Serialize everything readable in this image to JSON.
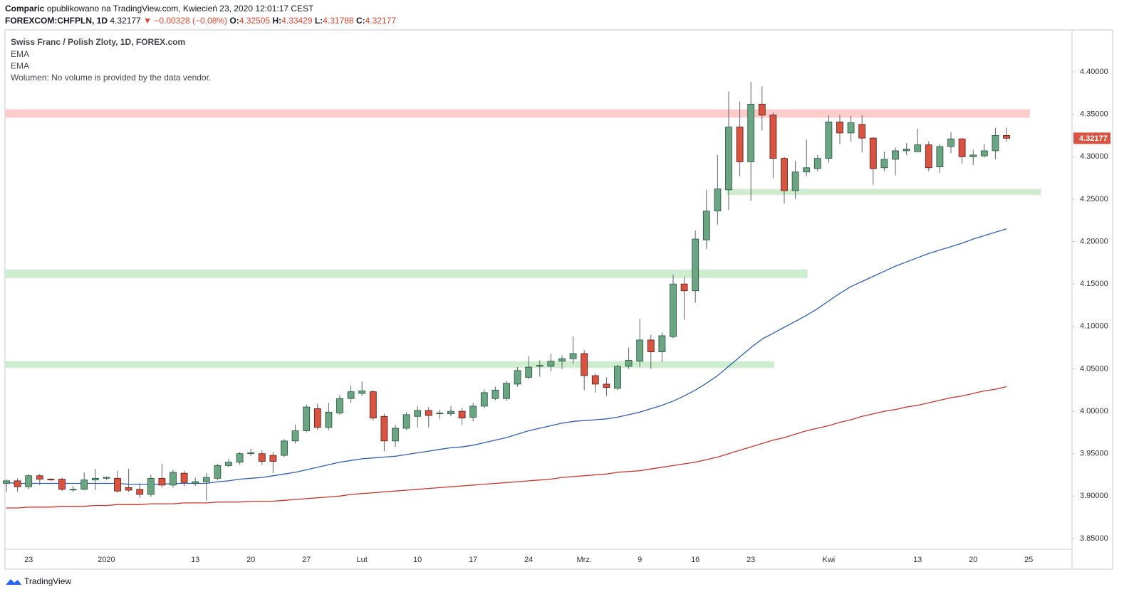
{
  "header": {
    "author": "Comparic",
    "published": "opublikowano na TradingView.com, Kwiecień 23, 2020 12:01:17 CEST",
    "symbol": "FOREXCOM:CHFPLN, 1D",
    "arrow": "▼",
    "change": "−0.00328 (−0.08%)",
    "o": "O:",
    "h": "H:",
    "l": "L:",
    "c": "C:"
  },
  "chart_data": {
    "type": "candlestick",
    "title": "Swiss Franc / Polish Zloty, 1D, FOREX.com",
    "volume_note": "Wolumen: No volume is provided by the data vendor.",
    "categories": [
      null,
      null,
      "23",
      null,
      null,
      null,
      null,
      null,
      null,
      "2020",
      null,
      null,
      null,
      null,
      null,
      null,
      null,
      "13",
      null,
      null,
      null,
      null,
      "20",
      null,
      null,
      null,
      null,
      "27",
      null,
      null,
      null,
      null,
      "Lut",
      null,
      null,
      null,
      null,
      "10",
      null,
      null,
      null,
      null,
      "17",
      null,
      null,
      null,
      null,
      "24",
      null,
      null,
      null,
      null,
      "Mrz.",
      null,
      null,
      null,
      null,
      "9",
      null,
      null,
      null,
      null,
      "16",
      null,
      null,
      null,
      null,
      "23",
      null,
      null,
      null,
      null,
      null,
      null,
      "Kwi",
      null,
      null,
      null,
      null,
      null,
      null,
      null,
      "13",
      null,
      null,
      null,
      null,
      "20",
      null,
      null,
      null,
      null,
      "25"
    ],
    "open": [
      3.915,
      3.918,
      3.911,
      3.924,
      3.92,
      3.92,
      3.908,
      3.908,
      3.919,
      3.921,
      3.921,
      3.91,
      3.908,
      3.902,
      3.921,
      3.913,
      3.927,
      3.915,
      3.917,
      3.921,
      3.936,
      3.94,
      3.95,
      3.95,
      3.948,
      3.948,
      3.965,
      3.977,
      4.003,
      3.981,
      3.998,
      4.015,
      4.021,
      4.023,
      3.994,
      3.965,
      3.98,
      3.994,
      4.001,
      3.997,
      3.997,
      4.0,
      3.993,
      4.006,
      4.015,
      4.015,
      4.032,
      4.04,
      4.053,
      4.053,
      4.059,
      4.062,
      4.068,
      4.042,
      4.032,
      4.027,
      4.053,
      4.059,
      4.084,
      4.07,
      4.088,
      4.15,
      4.142,
      4.202,
      4.236,
      4.261,
      4.335,
      4.294,
      4.362,
      4.349,
      4.298,
      4.26,
      4.282,
      4.286,
      4.298,
      4.341,
      4.328,
      4.338,
      4.322,
      4.287,
      4.297,
      4.307,
      4.306,
      4.314,
      4.288,
      4.312,
      4.321,
      4.3,
      4.301,
      4.307,
      4.32505,
      null,
      null
    ],
    "high": [
      3.92,
      3.921,
      3.926,
      3.926,
      3.921,
      3.922,
      3.912,
      3.928,
      3.932,
      3.923,
      3.93,
      3.932,
      3.915,
      3.925,
      3.938,
      3.931,
      3.93,
      3.922,
      3.927,
      3.938,
      3.944,
      3.952,
      3.956,
      3.954,
      3.952,
      3.967,
      3.984,
      4.008,
      4.009,
      4.01,
      4.019,
      4.03,
      4.035,
      4.025,
      3.997,
      3.984,
      3.999,
      4.006,
      4.005,
      4.002,
      4.006,
      4.004,
      4.01,
      4.026,
      4.029,
      4.036,
      4.052,
      4.065,
      4.06,
      4.068,
      4.066,
      4.088,
      4.072,
      4.045,
      4.04,
      4.055,
      4.075,
      4.109,
      4.09,
      4.093,
      4.161,
      4.158,
      4.213,
      4.261,
      4.302,
      4.377,
      4.365,
      4.388,
      4.383,
      4.352,
      4.3,
      4.295,
      4.32,
      4.302,
      4.349,
      4.349,
      4.348,
      4.349,
      4.323,
      4.306,
      4.311,
      4.316,
      4.333,
      4.318,
      4.315,
      4.329,
      4.322,
      4.308,
      4.315,
      4.334,
      4.33429,
      null,
      null
    ],
    "low": [
      3.905,
      3.905,
      3.908,
      3.913,
      3.918,
      3.906,
      3.905,
      3.907,
      3.907,
      3.919,
      3.904,
      3.905,
      3.898,
      3.899,
      3.91,
      3.91,
      3.912,
      3.912,
      3.895,
      3.919,
      3.934,
      3.937,
      3.947,
      3.937,
      3.927,
      3.946,
      3.962,
      3.975,
      3.978,
      3.978,
      3.996,
      4.01,
      4.018,
      3.989,
      3.953,
      3.958,
      3.978,
      3.981,
      3.981,
      3.991,
      3.994,
      3.984,
      3.988,
      4.004,
      4.013,
      4.012,
      4.029,
      4.038,
      4.041,
      4.047,
      4.05,
      4.056,
      4.025,
      4.022,
      4.018,
      4.025,
      4.05,
      4.052,
      4.05,
      4.058,
      4.086,
      4.108,
      4.128,
      4.191,
      4.22,
      4.237,
      4.277,
      4.248,
      4.331,
      4.275,
      4.245,
      4.25,
      4.277,
      4.283,
      4.293,
      4.315,
      4.318,
      4.305,
      4.267,
      4.283,
      4.278,
      4.302,
      4.305,
      4.283,
      4.281,
      4.304,
      4.292,
      4.29,
      4.299,
      4.297,
      4.31788,
      null,
      null
    ],
    "close": [
      3.918,
      3.911,
      3.924,
      3.92,
      3.919,
      3.908,
      3.908,
      3.919,
      3.921,
      3.922,
      3.906,
      3.907,
      3.902,
      3.921,
      3.913,
      3.928,
      3.916,
      3.917,
      3.922,
      3.936,
      3.94,
      3.95,
      3.951,
      3.941,
      3.941,
      3.965,
      3.977,
      4.005,
      3.981,
      3.999,
      4.015,
      4.023,
      4.024,
      3.992,
      3.965,
      3.98,
      3.996,
      4.001,
      3.995,
      3.998,
      4.0,
      3.992,
      4.006,
      4.022,
      4.025,
      4.033,
      4.048,
      4.052,
      4.054,
      4.059,
      4.062,
      4.068,
      4.042,
      4.032,
      4.028,
      4.053,
      4.06,
      4.084,
      4.07,
      4.089,
      4.15,
      4.142,
      4.203,
      4.236,
      4.262,
      4.335,
      4.294,
      4.362,
      4.349,
      4.298,
      4.26,
      4.282,
      4.287,
      4.298,
      4.341,
      4.328,
      4.34,
      4.322,
      4.286,
      4.297,
      4.307,
      4.309,
      4.314,
      4.287,
      4.312,
      4.321,
      4.3,
      4.302,
      4.307,
      4.325,
      4.32177,
      null,
      null
    ],
    "up_color": "#6ba583",
    "down_color": "#d75442",
    "series": [
      {
        "name": "EMA",
        "color": "#2f5fae",
        "values": [
          3.916,
          3.915,
          3.915,
          3.915,
          3.915,
          3.915,
          3.915,
          3.915,
          3.915,
          3.915,
          3.915,
          3.914,
          3.914,
          3.914,
          3.914,
          3.915,
          3.915,
          3.915,
          3.915,
          3.917,
          3.918,
          3.92,
          3.921,
          3.922,
          3.924,
          3.926,
          3.928,
          3.931,
          3.934,
          3.937,
          3.94,
          3.942,
          3.944,
          3.945,
          3.946,
          3.947,
          3.949,
          3.951,
          3.953,
          3.955,
          3.957,
          3.958,
          3.96,
          3.963,
          3.966,
          3.969,
          3.973,
          3.977,
          3.98,
          3.983,
          3.986,
          3.988,
          3.989,
          3.99,
          3.991,
          3.993,
          3.996,
          3.999,
          4.003,
          4.007,
          4.012,
          4.018,
          4.025,
          4.033,
          4.042,
          4.053,
          4.064,
          4.075,
          4.085,
          4.092,
          4.099,
          4.106,
          4.113,
          4.121,
          4.13,
          4.139,
          4.147,
          4.153,
          4.159,
          4.165,
          4.171,
          4.176,
          4.181,
          4.186,
          4.19,
          4.194,
          4.198,
          4.203,
          4.207,
          4.211,
          4.215,
          null,
          null
        ]
      },
      {
        "name": "EMA",
        "color": "#c6352e",
        "values": [
          3.886,
          3.886,
          3.887,
          3.887,
          3.887,
          3.888,
          3.888,
          3.888,
          3.889,
          3.889,
          3.89,
          3.89,
          3.89,
          3.891,
          3.891,
          3.891,
          3.892,
          3.892,
          3.892,
          3.893,
          3.893,
          3.893,
          3.894,
          3.894,
          3.894,
          3.895,
          3.896,
          3.897,
          3.898,
          3.899,
          3.9,
          3.902,
          3.903,
          3.904,
          3.905,
          3.906,
          3.907,
          3.908,
          3.909,
          3.91,
          3.911,
          3.912,
          3.913,
          3.914,
          3.915,
          3.916,
          3.917,
          3.918,
          3.919,
          3.92,
          3.922,
          3.923,
          3.924,
          3.925,
          3.926,
          3.928,
          3.929,
          3.93,
          3.932,
          3.934,
          3.936,
          3.938,
          3.94,
          3.943,
          3.946,
          3.95,
          3.954,
          3.958,
          3.962,
          3.966,
          3.969,
          3.973,
          3.977,
          3.98,
          3.983,
          3.987,
          3.99,
          3.994,
          3.997,
          4.0,
          4.002,
          4.005,
          4.007,
          4.01,
          4.013,
          4.016,
          4.018,
          4.021,
          4.024,
          4.026,
          4.029,
          null,
          null
        ]
      }
    ],
    "zones": [
      {
        "range": [
          4.346,
          4.356
        ],
        "span": [
          -0.2,
          92.1
        ],
        "color": "#ffc6c6"
      },
      {
        "range": [
          4.255,
          4.262
        ],
        "span": [
          64.8,
          93.1
        ],
        "color": "#c9ebc9"
      },
      {
        "range": [
          4.157,
          4.167
        ],
        "span": [
          -0.2,
          72.1
        ],
        "color": "#c9ebc9"
      },
      {
        "range": [
          4.051,
          4.059
        ],
        "span": [
          -0.2,
          69.1
        ],
        "color": "#c9ebc9"
      }
    ],
    "ylim": [
      3.8374,
      4.4495
    ],
    "yticks": [
      {
        "value": 3.85,
        "label": "3.85000"
      },
      {
        "value": 3.9,
        "label": "3.90000"
      },
      {
        "value": 3.95,
        "label": "3.95000"
      },
      {
        "value": 4.0,
        "label": "4.00000"
      },
      {
        "value": 4.05,
        "label": "4.05000"
      },
      {
        "value": 4.1,
        "label": "4.10000"
      },
      {
        "value": 4.15,
        "label": "4.15000"
      },
      {
        "value": 4.2,
        "label": "4.20000"
      },
      {
        "value": 4.25,
        "label": "4.25000"
      },
      {
        "value": 4.3,
        "label": "4.30000"
      },
      {
        "value": 4.35,
        "label": "4.35000"
      },
      {
        "value": 4.4,
        "label": "4.40000"
      }
    ],
    "grid": false
  },
  "footer": "TradingView"
}
